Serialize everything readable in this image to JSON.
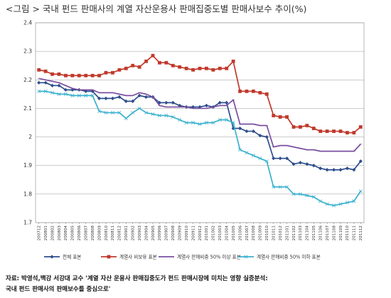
{
  "title": "<그림 > 국내 펀드 판매사의 계열 자산운용사 판매집중도별 판매사보수 추이(%)",
  "source_line1": "자료: 박영석,백강 서강대 교수 '계열 자산 운용사 판매집중도가 펀드 판매시장에 미치는 영향 실증분석:",
  "source_line2": "국내 펀드 판매사의 판매보수를 중심으로'",
  "chart_data": {
    "type": "line",
    "title": "",
    "xlabel": "",
    "ylabel": "",
    "ylim": [
      1.7,
      2.4
    ],
    "yticks": [
      1.7,
      1.8,
      1.9,
      2,
      2.1,
      2.2,
      2.3,
      2.4
    ],
    "grid": "horizontal",
    "legend": "bottom",
    "x": [
      "200712",
      "200801",
      "200802",
      "200803",
      "200804",
      "200805",
      "200806",
      "200807",
      "200808",
      "200809",
      "200810",
      "200811",
      "200812",
      "200901",
      "200902",
      "200903",
      "200904",
      "200905",
      "200906",
      "200907",
      "200908",
      "200909",
      "200910",
      "200911",
      "200912",
      "201001",
      "201002",
      "201003",
      "201004",
      "201005",
      "201006",
      "201007",
      "201008",
      "201009",
      "201010",
      "201011",
      "201012",
      "201101",
      "201102",
      "201103",
      "201104",
      "201105",
      "201106",
      "201107",
      "201108",
      "201109",
      "201110",
      "201111",
      "201112"
    ],
    "series": [
      {
        "name": "전체 표본",
        "color": "#2e4e8c",
        "marker": "diamond",
        "values": [
          2.19,
          2.19,
          2.18,
          2.18,
          2.165,
          2.165,
          2.165,
          2.16,
          2.16,
          2.135,
          2.135,
          2.135,
          2.14,
          2.125,
          2.125,
          2.145,
          2.14,
          2.14,
          2.12,
          2.12,
          2.12,
          2.11,
          2.105,
          2.105,
          2.105,
          2.11,
          2.105,
          2.12,
          2.12,
          2.03,
          2.03,
          2.02,
          2.02,
          2.005,
          2.0,
          1.925,
          1.925,
          1.925,
          1.905,
          1.91,
          1.905,
          1.9,
          1.89,
          1.885,
          1.885,
          1.885,
          1.89,
          1.885,
          1.915
        ]
      },
      {
        "name": "계열사 비보유 표본",
        "color": "#c0392b",
        "marker": "square",
        "values": [
          2.235,
          2.23,
          2.22,
          2.22,
          2.215,
          2.215,
          2.215,
          2.215,
          2.215,
          2.215,
          2.225,
          2.225,
          2.235,
          2.24,
          2.25,
          2.245,
          2.265,
          2.285,
          2.26,
          2.26,
          2.25,
          2.245,
          2.24,
          2.235,
          2.24,
          2.24,
          2.235,
          2.24,
          2.24,
          2.265,
          2.16,
          2.16,
          2.16,
          2.155,
          2.15,
          2.075,
          2.07,
          2.07,
          2.035,
          2.035,
          2.04,
          2.03,
          2.02,
          2.02,
          2.02,
          2.02,
          2.015,
          2.015,
          2.035
        ]
      },
      {
        "name": "계열사 판매비중 50% 이상 표본",
        "color": "#7a4fa0",
        "marker": "none",
        "values": [
          2.205,
          2.2,
          2.195,
          2.19,
          2.18,
          2.17,
          2.165,
          2.165,
          2.165,
          2.155,
          2.155,
          2.155,
          2.15,
          2.145,
          2.145,
          2.155,
          2.15,
          2.14,
          2.11,
          2.105,
          2.105,
          2.105,
          2.105,
          2.1,
          2.1,
          2.1,
          2.105,
          2.11,
          2.11,
          2.13,
          2.045,
          2.045,
          2.045,
          2.04,
          2.04,
          1.965,
          1.97,
          1.97,
          1.965,
          1.96,
          1.955,
          1.955,
          1.95,
          1.95,
          1.95,
          1.95,
          1.95,
          1.95,
          1.975
        ]
      },
      {
        "name": "계열사 판매비중 50% 이하 표본",
        "color": "#3ab1cf",
        "marker": "x",
        "values": [
          2.16,
          2.16,
          2.155,
          2.15,
          2.15,
          2.145,
          2.145,
          2.145,
          2.145,
          2.09,
          2.085,
          2.085,
          2.085,
          2.065,
          2.085,
          2.1,
          2.085,
          2.08,
          2.075,
          2.075,
          2.07,
          2.06,
          2.05,
          2.05,
          2.045,
          2.05,
          2.05,
          2.06,
          2.06,
          2.05,
          1.955,
          1.945,
          1.935,
          1.925,
          1.915,
          1.825,
          1.825,
          1.825,
          1.8,
          1.8,
          1.795,
          1.79,
          1.775,
          1.765,
          1.76,
          1.765,
          1.77,
          1.775,
          1.81
        ]
      }
    ]
  }
}
